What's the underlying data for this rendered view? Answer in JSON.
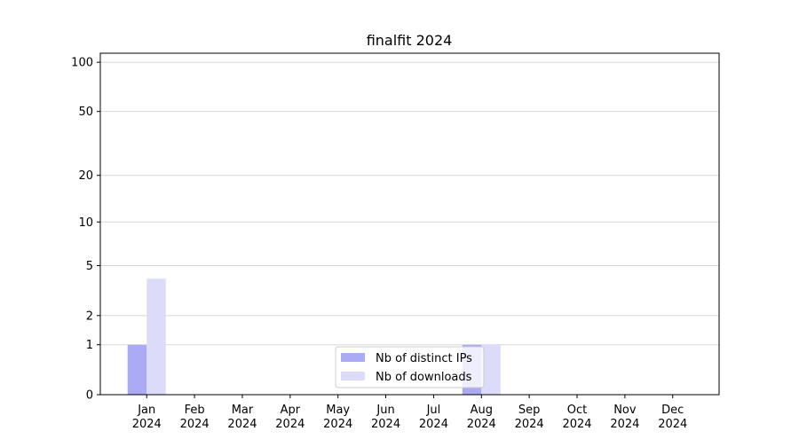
{
  "chart_data": {
    "type": "bar",
    "title": "finalfit 2024",
    "categories": [
      "Jan 2024",
      "Feb 2024",
      "Mar 2024",
      "Apr 2024",
      "May 2024",
      "Jun 2024",
      "Jul 2024",
      "Aug 2024",
      "Sep 2024",
      "Oct 2024",
      "Nov 2024",
      "Dec 2024"
    ],
    "series": [
      {
        "name": "Nb of distinct IPs",
        "color": "#aaaaf5",
        "values": [
          1,
          0,
          0,
          0,
          0,
          0,
          0,
          1,
          0,
          0,
          0,
          0
        ]
      },
      {
        "name": "Nb of downloads",
        "color": "#dcdcfa",
        "values": [
          4,
          0,
          0,
          0,
          0,
          0,
          0,
          1,
          0,
          0,
          0,
          0
        ]
      }
    ],
    "yscale": "log1p",
    "ylim": [
      0,
      113.5
    ],
    "yticks": [
      0,
      1,
      2,
      5,
      10,
      20,
      50,
      100
    ],
    "grid": true,
    "legend": "lower center"
  }
}
